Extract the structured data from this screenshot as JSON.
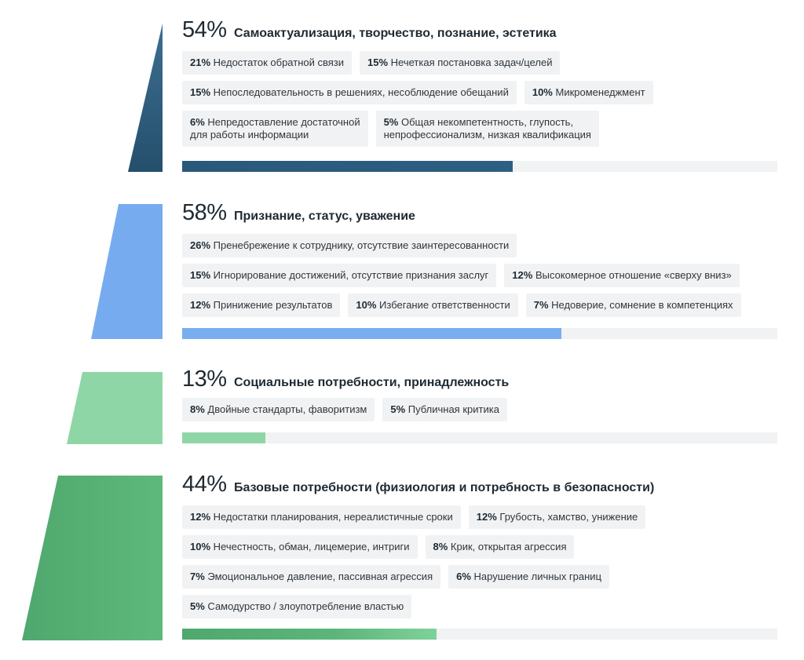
{
  "sections": [
    {
      "percent": "54%",
      "title": "Самоактуализация, творчество, познание, эстетика",
      "fill_fraction": 0.555,
      "color": "#2c5f82",
      "items": [
        {
          "pct": "21%",
          "text": "Недостаток обратной связи"
        },
        {
          "pct": "15%",
          "text": "Нечеткая постановка задач/целей"
        },
        {
          "pct": "15%",
          "text": "Непоследовательность в решениях, несоблюдение обещаний"
        },
        {
          "pct": "10%",
          "text": "Микроменеджмент"
        },
        {
          "pct": "6%",
          "text": "Непредоставление достаточной",
          "text2": "для работы информации"
        },
        {
          "pct": "5%",
          "text": "Общая некомпетентность, глупость,",
          "text2": "непрофессионализм, низкая квалификация"
        }
      ]
    },
    {
      "percent": "58%",
      "title": "Признание, статус, уважение",
      "fill_fraction": 0.637,
      "color": "#79aef0",
      "items": [
        {
          "pct": "26%",
          "text": "Пренебрежение к сотруднику, отсутствие заинтересованности"
        },
        {
          "pct": "15%",
          "text": "Игнорирование достижений, отсутствие признания заслуг"
        },
        {
          "pct": "12%",
          "text": "Высокомерное отношение «сверху вниз»"
        },
        {
          "pct": "12%",
          "text": "Принижение результатов"
        },
        {
          "pct": "10%",
          "text": "Избегание ответственности"
        },
        {
          "pct": "7%",
          "text": "Недоверие, сомнение в компетенциях"
        }
      ]
    },
    {
      "percent": "13%",
      "title": "Социальные потребности, принадлежность",
      "fill_fraction": 0.14,
      "color": "#8fd6a6",
      "items": [
        {
          "pct": "8%",
          "text": "Двойные стандарты, фаворитизм"
        },
        {
          "pct": "5%",
          "text": "Публичная критика"
        }
      ]
    },
    {
      "percent": "44%",
      "title": "Базовые потребности (физиология и потребность в безопасности)",
      "fill_fraction": 0.427,
      "color": "#5cb57a",
      "items": [
        {
          "pct": "12%",
          "text": "Недостатки планирования, нереалистичные сроки"
        },
        {
          "pct": "12%",
          "text": "Грубость, хамство, унижение"
        },
        {
          "pct": "10%",
          "text": "Нечестность, обман, лицемерие, интриги"
        },
        {
          "pct": "8%",
          "text": "Крик, открытая агрессия"
        },
        {
          "pct": "7%",
          "text": "Эмоциональное давление, пассивная агрессия"
        },
        {
          "pct": "6%",
          "text": "Нарушение личных границ"
        },
        {
          "pct": "5%",
          "text": "Самодурство / злоупотребление властью"
        }
      ]
    }
  ]
}
